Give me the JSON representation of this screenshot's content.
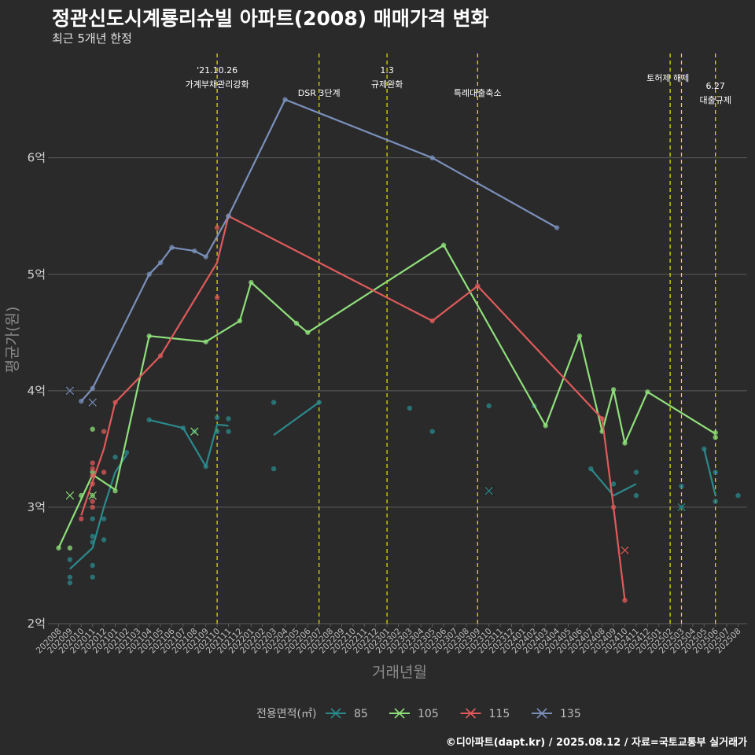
{
  "title": "정관신도시계룡리슈빌 아파트(2008) 매매가격 변화",
  "subtitle": "최근 5개년 한정",
  "caption": "©디아파트(dapt.kr) / 2025.08.12 / 자료=국토교통부 실거래가",
  "colors": {
    "85": "#2a8a8c",
    "105": "#8ee07a",
    "115": "#e05a5a",
    "135": "#7a90bb"
  },
  "chart_data": {
    "type": "line",
    "xlabel": "거래년월",
    "ylabel": "평균가(원)",
    "x_categories": [
      "202008",
      "202009",
      "202010",
      "202011",
      "202012",
      "202101",
      "202102",
      "202103",
      "202104",
      "202105",
      "202106",
      "202107",
      "202108",
      "202109",
      "202110",
      "202111",
      "202112",
      "202201",
      "202202",
      "202203",
      "202204",
      "202205",
      "202206",
      "202207",
      "202208",
      "202209",
      "202210",
      "202211",
      "202212",
      "202301",
      "202302",
      "202303",
      "202304",
      "202305",
      "202306",
      "202307",
      "202308",
      "202309",
      "202310",
      "202311",
      "202312",
      "202401",
      "202402",
      "202403",
      "202404",
      "202405",
      "202406",
      "202407",
      "202408",
      "202409",
      "202410",
      "202411",
      "202412",
      "202501",
      "202502",
      "202503",
      "202504",
      "202505",
      "202506",
      "202507",
      "202508"
    ],
    "y_ticks": [
      {
        "value": 2,
        "label": "2억"
      },
      {
        "value": 3,
        "label": "3억"
      },
      {
        "value": 4,
        "label": "4억"
      },
      {
        "value": 5,
        "label": "5억"
      },
      {
        "value": 6,
        "label": "6억"
      }
    ],
    "ylim": [
      2,
      6.95
    ],
    "grid": true,
    "legend_title": "전용면적(㎡)",
    "legend_position": "bottom",
    "events": [
      {
        "x": "202110",
        "label1": "'21.10.26",
        "label2": "가계부채관리강화"
      },
      {
        "x": "202207",
        "label1": "",
        "label2": "DSR 3단계"
      },
      {
        "x": "202301",
        "label1": "1.3",
        "label2": "규제완화"
      },
      {
        "x": "202309",
        "label1": "",
        "label2": "특례대출축소"
      },
      {
        "x": "202502",
        "label1": "",
        "label2": "토허제 해제"
      },
      {
        "x": "202503",
        "label1": "",
        "label2": ""
      },
      {
        "x": "202506",
        "label1": "6.27",
        "label2": "대출규제"
      }
    ],
    "series": [
      {
        "name": "85",
        "lines": [
          [
            [
              "202009",
              2.47
            ],
            [
              "202011",
              2.65
            ],
            [
              "202012",
              3.0
            ],
            [
              "202101",
              3.3
            ],
            [
              "202102",
              3.45
            ]
          ],
          [
            [
              "202104",
              3.75
            ],
            [
              "202107",
              3.68
            ],
            [
              "202109",
              3.35
            ],
            [
              "202110",
              3.71
            ],
            [
              "202111",
              3.7
            ]
          ],
          [
            [
              "202203",
              3.62
            ],
            [
              "202207",
              3.9
            ]
          ],
          [
            [
              "202407",
              3.33
            ],
            [
              "202409",
              3.1
            ],
            [
              "202411",
              3.2
            ]
          ],
          [
            [
              "202505",
              3.5
            ],
            [
              "202506",
              3.1
            ]
          ]
        ],
        "points": [
          [
            "202009",
            2.55
          ],
          [
            "202009",
            2.4
          ],
          [
            "202009",
            2.35
          ],
          [
            "202011",
            2.75
          ],
          [
            "202011",
            2.7
          ],
          [
            "202011",
            2.5
          ],
          [
            "202011",
            2.4
          ],
          [
            "202011",
            2.9
          ],
          [
            "202012",
            2.9
          ],
          [
            "202012",
            2.72
          ],
          [
            "202101",
            3.43
          ],
          [
            "202102",
            3.47
          ],
          [
            "202104",
            3.75
          ],
          [
            "202107",
            3.68
          ],
          [
            "202108",
            3.65
          ],
          [
            "202109",
            3.35
          ],
          [
            "202110",
            3.77
          ],
          [
            "202110",
            3.65
          ],
          [
            "202111",
            3.76
          ],
          [
            "202111",
            3.65
          ],
          [
            "202203",
            3.9
          ],
          [
            "202203",
            3.33
          ],
          [
            "202207",
            3.9
          ],
          [
            "202303",
            3.85
          ],
          [
            "202305",
            3.65
          ],
          [
            "202310",
            3.87
          ],
          [
            "202402",
            3.87
          ],
          [
            "202407",
            3.33
          ],
          [
            "202409",
            3.2
          ],
          [
            "202411",
            3.3
          ],
          [
            "202411",
            3.1
          ],
          [
            "202503",
            3.18
          ],
          [
            "202503",
            3.0
          ],
          [
            "202505",
            3.5
          ],
          [
            "202506",
            3.3
          ],
          [
            "202506",
            3.05
          ],
          [
            "202508",
            3.1
          ]
        ],
        "cross_points": [
          [
            "202310",
            3.14
          ],
          [
            "202503",
            3.0
          ]
        ]
      },
      {
        "name": "105",
        "lines": [
          [
            [
              "202008",
              2.65
            ],
            [
              "202011",
              3.28
            ],
            [
              "202101",
              3.15
            ],
            [
              "202104",
              4.47
            ],
            [
              "202109",
              4.42
            ],
            [
              "202112",
              4.6
            ],
            [
              "202201",
              4.93
            ],
            [
              "202205",
              4.58
            ],
            [
              "202206",
              4.5
            ],
            [
              "202306",
              5.25
            ],
            [
              "202403",
              3.7
            ],
            [
              "202406",
              4.47
            ],
            [
              "202408",
              3.65
            ],
            [
              "202409",
              4.01
            ],
            [
              "202410",
              3.55
            ],
            [
              "202412",
              3.99
            ],
            [
              "202506",
              3.63
            ]
          ]
        ],
        "points": [
          [
            "202008",
            2.65
          ],
          [
            "202009",
            2.65
          ],
          [
            "202010",
            3.1
          ],
          [
            "202011",
            3.67
          ],
          [
            "202011",
            3.3
          ],
          [
            "202011",
            3.1
          ],
          [
            "202101",
            3.14
          ],
          [
            "202104",
            4.47
          ],
          [
            "202109",
            4.42
          ],
          [
            "202112",
            4.6
          ],
          [
            "202201",
            4.93
          ],
          [
            "202205",
            4.58
          ],
          [
            "202206",
            4.5
          ],
          [
            "202306",
            5.25
          ],
          [
            "202403",
            3.7
          ],
          [
            "202406",
            4.47
          ],
          [
            "202408",
            3.65
          ],
          [
            "202409",
            4.01
          ],
          [
            "202410",
            3.55
          ],
          [
            "202412",
            3.99
          ],
          [
            "202506",
            3.6
          ],
          [
            "202506",
            3.64
          ]
        ],
        "cross_points": [
          [
            "202009",
            3.1
          ],
          [
            "202011",
            3.1
          ],
          [
            "202108",
            3.65
          ]
        ]
      },
      {
        "name": "115",
        "lines": [
          [
            [
              "202010",
              2.93
            ],
            [
              "202011",
              3.22
            ],
            [
              "202012",
              3.5
            ],
            [
              "202101",
              3.9
            ],
            [
              "202105",
              4.3
            ],
            [
              "202110",
              5.1
            ],
            [
              "202111",
              5.5
            ],
            [
              "202305",
              4.6
            ],
            [
              "202309",
              4.9
            ],
            [
              "202408",
              3.76
            ],
            [
              "202409",
              3.0
            ],
            [
              "202410",
              2.2
            ]
          ]
        ],
        "points": [
          [
            "202010",
            2.9
          ],
          [
            "202011",
            3.38
          ],
          [
            "202011",
            3.33
          ],
          [
            "202011",
            3.27
          ],
          [
            "202011",
            3.2
          ],
          [
            "202011",
            3.05
          ],
          [
            "202011",
            3.0
          ],
          [
            "202012",
            3.65
          ],
          [
            "202012",
            3.3
          ],
          [
            "202101",
            3.9
          ],
          [
            "202105",
            4.3
          ],
          [
            "202110",
            5.4
          ],
          [
            "202110",
            4.8
          ],
          [
            "202111",
            5.5
          ],
          [
            "202305",
            4.6
          ],
          [
            "202309",
            4.9
          ],
          [
            "202408",
            3.76
          ],
          [
            "202409",
            3.0
          ],
          [
            "202410",
            2.2
          ]
        ],
        "cross_points": [
          [
            "202410",
            2.63
          ]
        ]
      },
      {
        "name": "135",
        "lines": [
          [
            [
              "202010",
              3.91
            ],
            [
              "202011",
              4.02
            ],
            [
              "202104",
              5.0
            ],
            [
              "202105",
              5.1
            ],
            [
              "202106",
              5.23
            ],
            [
              "202108",
              5.2
            ],
            [
              "202109",
              5.15
            ],
            [
              "202111",
              5.5
            ],
            [
              "202204",
              6.5
            ],
            [
              "202305",
              6.0
            ],
            [
              "202404",
              5.4
            ]
          ]
        ],
        "points": [
          [
            "202010",
            3.91
          ],
          [
            "202011",
            4.02
          ],
          [
            "202104",
            5.0
          ],
          [
            "202105",
            5.1
          ],
          [
            "202106",
            5.23
          ],
          [
            "202108",
            5.2
          ],
          [
            "202109",
            5.15
          ],
          [
            "202111",
            5.5
          ],
          [
            "202204",
            6.5
          ],
          [
            "202305",
            6.0
          ],
          [
            "202404",
            5.4
          ]
        ],
        "cross_points": [
          [
            "202009",
            4.0
          ],
          [
            "202011",
            3.9
          ]
        ]
      }
    ]
  }
}
